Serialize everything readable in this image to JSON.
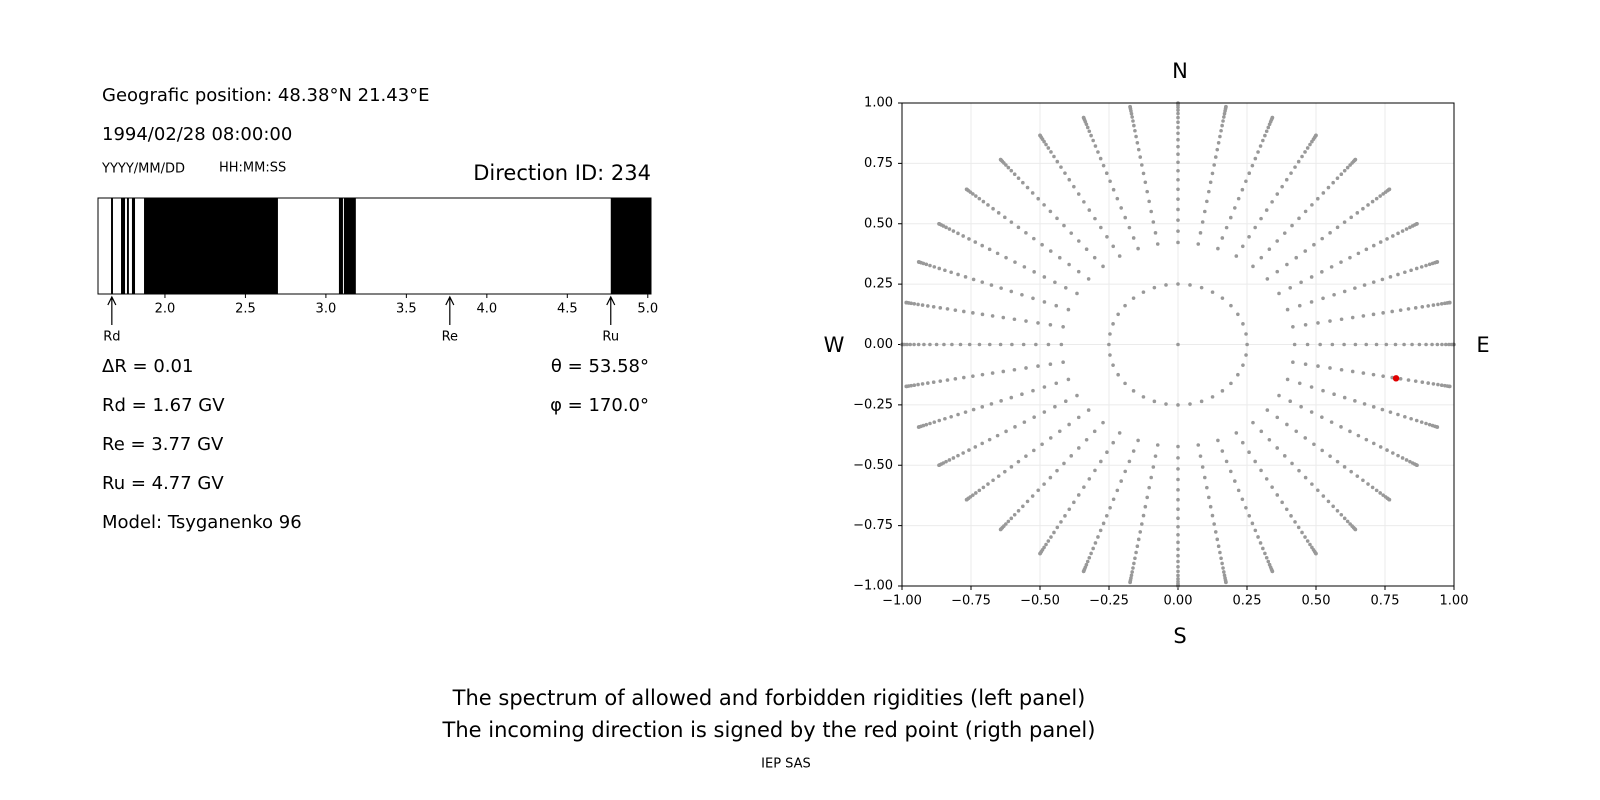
{
  "header": {
    "position": "Geografic position: 48.38°N 21.43°E",
    "datetime": "1994/02/28 08:00:00",
    "date_format": "YYYY/MM/DD",
    "time_format": "HH:MM:SS",
    "direction": "Direction ID: 234"
  },
  "chart_data": [
    {
      "type": "band",
      "xlim": [
        1.584,
        5.02
      ],
      "xticks": [
        {
          "value": 2,
          "label": "2.0"
        },
        2.5,
        {
          "value": 3,
          "label": "3.0"
        },
        3.5,
        {
          "value": 4,
          "label": "4.0"
        },
        4.5,
        {
          "value": 5,
          "label": "5.0"
        }
      ],
      "color": "#000000",
      "bands": [
        [
          1.665,
          1.677
        ],
        [
          1.727,
          1.752
        ],
        [
          1.764,
          1.776
        ],
        [
          1.795,
          1.814
        ],
        [
          1.87,
          2.702
        ],
        [
          3.081,
          3.106
        ],
        [
          3.112,
          3.186
        ],
        [
          4.77,
          5.02
        ]
      ],
      "markers": [
        {
          "label": "Rd",
          "value": 1.67
        },
        {
          "label": "Re",
          "value": 3.77
        },
        {
          "label": "Ru",
          "value": 4.77
        }
      ]
    },
    {
      "type": "scatter",
      "xlim": [
        -1,
        1
      ],
      "ylim": [
        -1,
        1
      ],
      "grid": true,
      "xticks": [
        {
          "value": -1,
          "label": "−1.00"
        },
        {
          "value": -0.75,
          "label": "−0.75"
        },
        {
          "value": -0.5,
          "label": "−0.50"
        },
        {
          "value": -0.25,
          "label": "−0.25"
        },
        {
          "value": 0,
          "label": "0.00"
        },
        0.25,
        {
          "value": 0.5,
          "label": "0.50"
        },
        0.75,
        {
          "value": 1,
          "label": "1.00"
        }
      ],
      "yticks": [
        {
          "value": -1,
          "label": "−1.00"
        },
        {
          "value": -0.75,
          "label": "−0.75"
        },
        {
          "value": -0.5,
          "label": "−0.50"
        },
        {
          "value": -0.25,
          "label": "−0.25"
        },
        {
          "value": 0,
          "label": "0.00"
        },
        0.25,
        {
          "value": 0.5,
          "label": "0.50"
        },
        0.75,
        {
          "value": 1,
          "label": "1.00"
        }
      ],
      "compass": {
        "north": "N",
        "south": "S",
        "west": "W",
        "east": "E"
      },
      "sky_grid": {
        "color": "#999999",
        "zenith": [
          0,
          14.5,
          25,
          28,
          31,
          34,
          37,
          40,
          43,
          46,
          49,
          52,
          55,
          58,
          61,
          64,
          67,
          70,
          73,
          76,
          79,
          82,
          85,
          88,
          90
        ],
        "azimuth": [
          0,
          10,
          20,
          30,
          40,
          50,
          60,
          70,
          80,
          90,
          100,
          110,
          120,
          130,
          140,
          150,
          160,
          170,
          180,
          190,
          200,
          210,
          220,
          230,
          240,
          250,
          260,
          270,
          280,
          290,
          300,
          310,
          320,
          330,
          340,
          350
        ]
      },
      "point": {
        "x": 0.79,
        "y": -0.14,
        "color": "#e00000"
      }
    }
  ],
  "info": {
    "left": [
      "ΔR = 0.01",
      "Rd = 1.67 GV",
      "Re = 3.77 GV",
      "Ru = 4.77 GV",
      "Model: Tsyganenko 96"
    ],
    "right": [
      "θ = 53.58°",
      "φ = 170.0°"
    ]
  },
  "caption": [
    "The spectrum of allowed and forbidden rigidities (left panel)",
    "The incoming direction is signed by the red point (rigth panel)"
  ],
  "footer": "IEP SAS"
}
